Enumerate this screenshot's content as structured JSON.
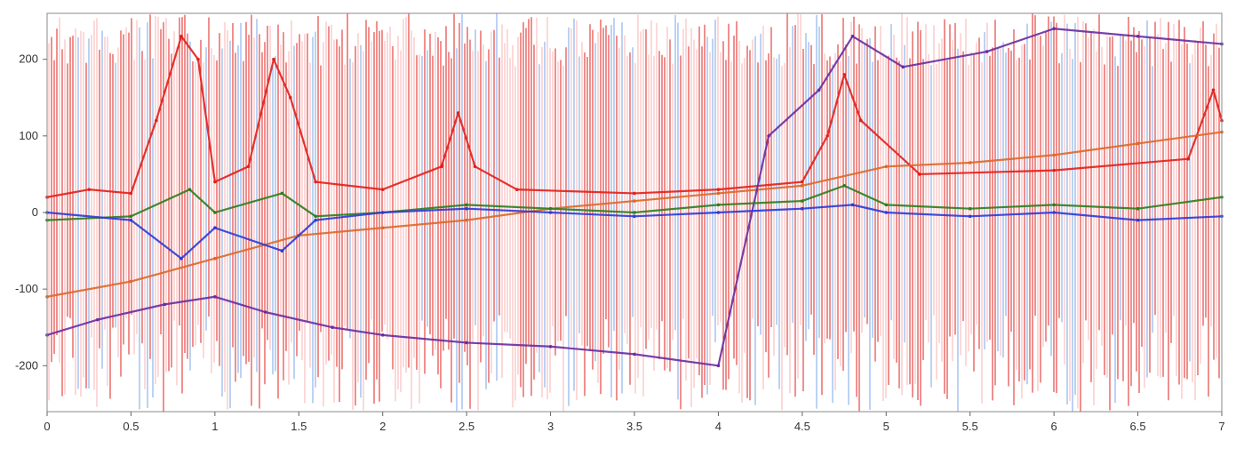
{
  "chart_data": {
    "type": "line",
    "title": "",
    "xlabel": "",
    "ylabel": "",
    "xlim": [
      0,
      7
    ],
    "ylim": [
      -260,
      260
    ],
    "x_ticks": [
      0,
      0.5,
      1,
      1.5,
      2,
      2.5,
      3,
      3.5,
      4,
      4.5,
      5,
      5.5,
      6,
      6.5,
      7
    ],
    "x_tick_labels": [
      "0",
      "0.5",
      "1",
      "1.5",
      "2",
      "2.5",
      "3",
      "3.5",
      "4",
      "4.5",
      "5",
      "5.5",
      "6",
      "6.5",
      "7"
    ],
    "y_ticks": [
      -200,
      -100,
      0,
      100,
      200
    ],
    "y_tick_labels": [
      "-200",
      "-100",
      "0",
      "100",
      "200"
    ],
    "grid": false,
    "legend": "none",
    "colors": {
      "red": "#e0201c",
      "light_red": "#f7a1a1",
      "blue": "#2e3ad6",
      "light_blue": "#5a8fe6",
      "green": "#2e7d1e",
      "orange": "#d9692a",
      "purple": "#6a2ba0"
    },
    "series": [
      {
        "color": "red",
        "description_note": "",
        "x": [
          0,
          0.25,
          0.5,
          0.65,
          0.8,
          0.9,
          1.0,
          1.2,
          1.35,
          1.45,
          1.6,
          2.0,
          2.35,
          2.45,
          2.55,
          2.8,
          3.5,
          4.0,
          4.5,
          4.65,
          4.75,
          4.85,
          5.2,
          6.0,
          6.8,
          6.95,
          7.0
        ],
        "y": [
          20,
          30,
          25,
          120,
          230,
          200,
          40,
          60,
          200,
          150,
          40,
          30,
          60,
          130,
          60,
          30,
          25,
          30,
          40,
          100,
          180,
          120,
          50,
          55,
          70,
          160,
          120
        ]
      },
      {
        "color": "orange",
        "x": [
          0,
          0.5,
          1.0,
          1.5,
          2.0,
          2.5,
          3.0,
          3.5,
          4.0,
          4.5,
          5.0,
          5.5,
          6.0,
          6.5,
          7.0
        ],
        "y": [
          -110,
          -90,
          -60,
          -30,
          -20,
          -10,
          5,
          15,
          25,
          35,
          60,
          65,
          75,
          90,
          105
        ]
      },
      {
        "color": "purple",
        "x": [
          0,
          0.3,
          0.7,
          1.0,
          1.3,
          1.7,
          2.0,
          2.5,
          3.0,
          3.5,
          4.0,
          4.3,
          4.6,
          4.8,
          5.1,
          5.6,
          6.0,
          6.5,
          7.0
        ],
        "y": [
          -160,
          -140,
          -120,
          -110,
          -130,
          -150,
          -160,
          -170,
          -175,
          -185,
          -200,
          100,
          160,
          230,
          190,
          210,
          240,
          230,
          220
        ]
      },
      {
        "color": "green",
        "x": [
          0,
          0.5,
          0.85,
          1.0,
          1.4,
          1.6,
          2.0,
          2.5,
          3.0,
          3.5,
          4.0,
          4.5,
          4.75,
          5.0,
          5.5,
          6.0,
          6.5,
          7.0
        ],
        "y": [
          -10,
          -5,
          30,
          0,
          25,
          -5,
          0,
          10,
          5,
          0,
          10,
          15,
          35,
          10,
          5,
          10,
          5,
          20
        ]
      },
      {
        "color": "blue",
        "x": [
          0,
          0.5,
          0.8,
          1.0,
          1.4,
          1.6,
          2.0,
          2.5,
          3.0,
          3.5,
          4.0,
          4.5,
          4.8,
          5.0,
          5.5,
          6.0,
          6.5,
          7.0
        ],
        "y": [
          0,
          -10,
          -60,
          -20,
          -50,
          -10,
          0,
          5,
          0,
          -5,
          0,
          5,
          10,
          0,
          -5,
          0,
          -10,
          -5
        ]
      }
    ]
  }
}
